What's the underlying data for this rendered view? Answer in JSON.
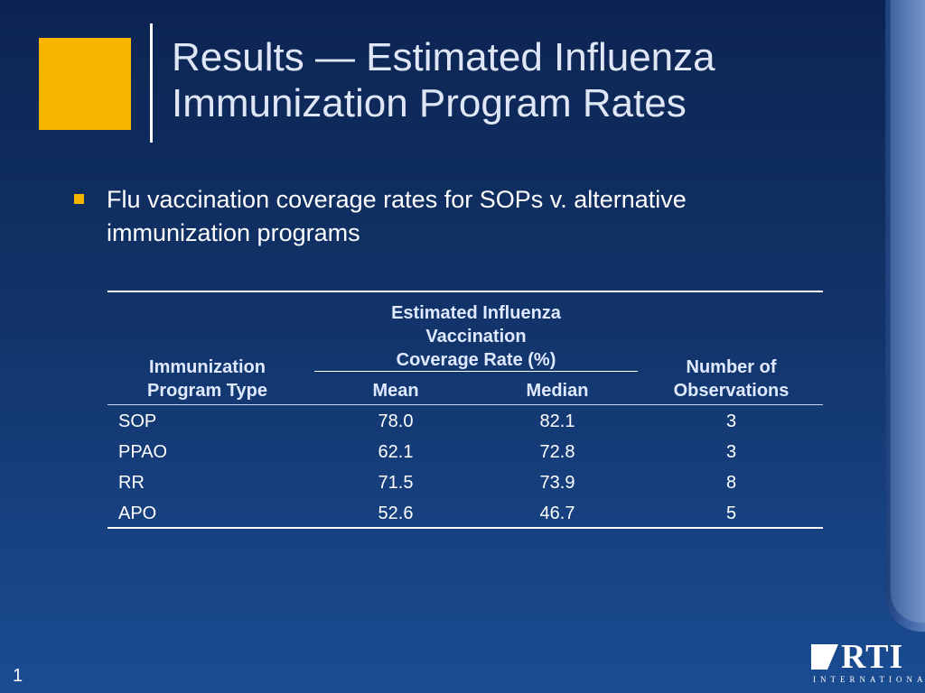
{
  "slide": {
    "title_lines": [
      "Results — Estimated Influenza",
      "Immunization Program Rates"
    ],
    "bullet_lines": [
      "Flu vaccination coverage rates for SOPs v. alternative",
      "immunization programs"
    ],
    "page_number": "1",
    "colors": {
      "accent": "#f7b500",
      "background": "#123369"
    }
  },
  "table": {
    "col1_header_lines": [
      "Immunization",
      "Program Type"
    ],
    "group_header_lines": [
      "Estimated Influenza",
      "Vaccination",
      "Coverage Rate (%)"
    ],
    "sub_headers": [
      "Mean",
      "Median"
    ],
    "col4_header_lines": [
      "Number of",
      "Observations"
    ],
    "rows": [
      {
        "type": "SOP",
        "mean": "78.0",
        "median": "82.1",
        "n": "3"
      },
      {
        "type": "PPAO",
        "mean": "62.1",
        "median": "72.8",
        "n": "3"
      },
      {
        "type": "RR",
        "mean": "71.5",
        "median": "73.9",
        "n": "8"
      },
      {
        "type": "APO",
        "mean": "52.6",
        "median": "46.7",
        "n": "5"
      }
    ]
  },
  "logo": {
    "name": "RTI",
    "subtitle": "INTERNATIONAL"
  }
}
